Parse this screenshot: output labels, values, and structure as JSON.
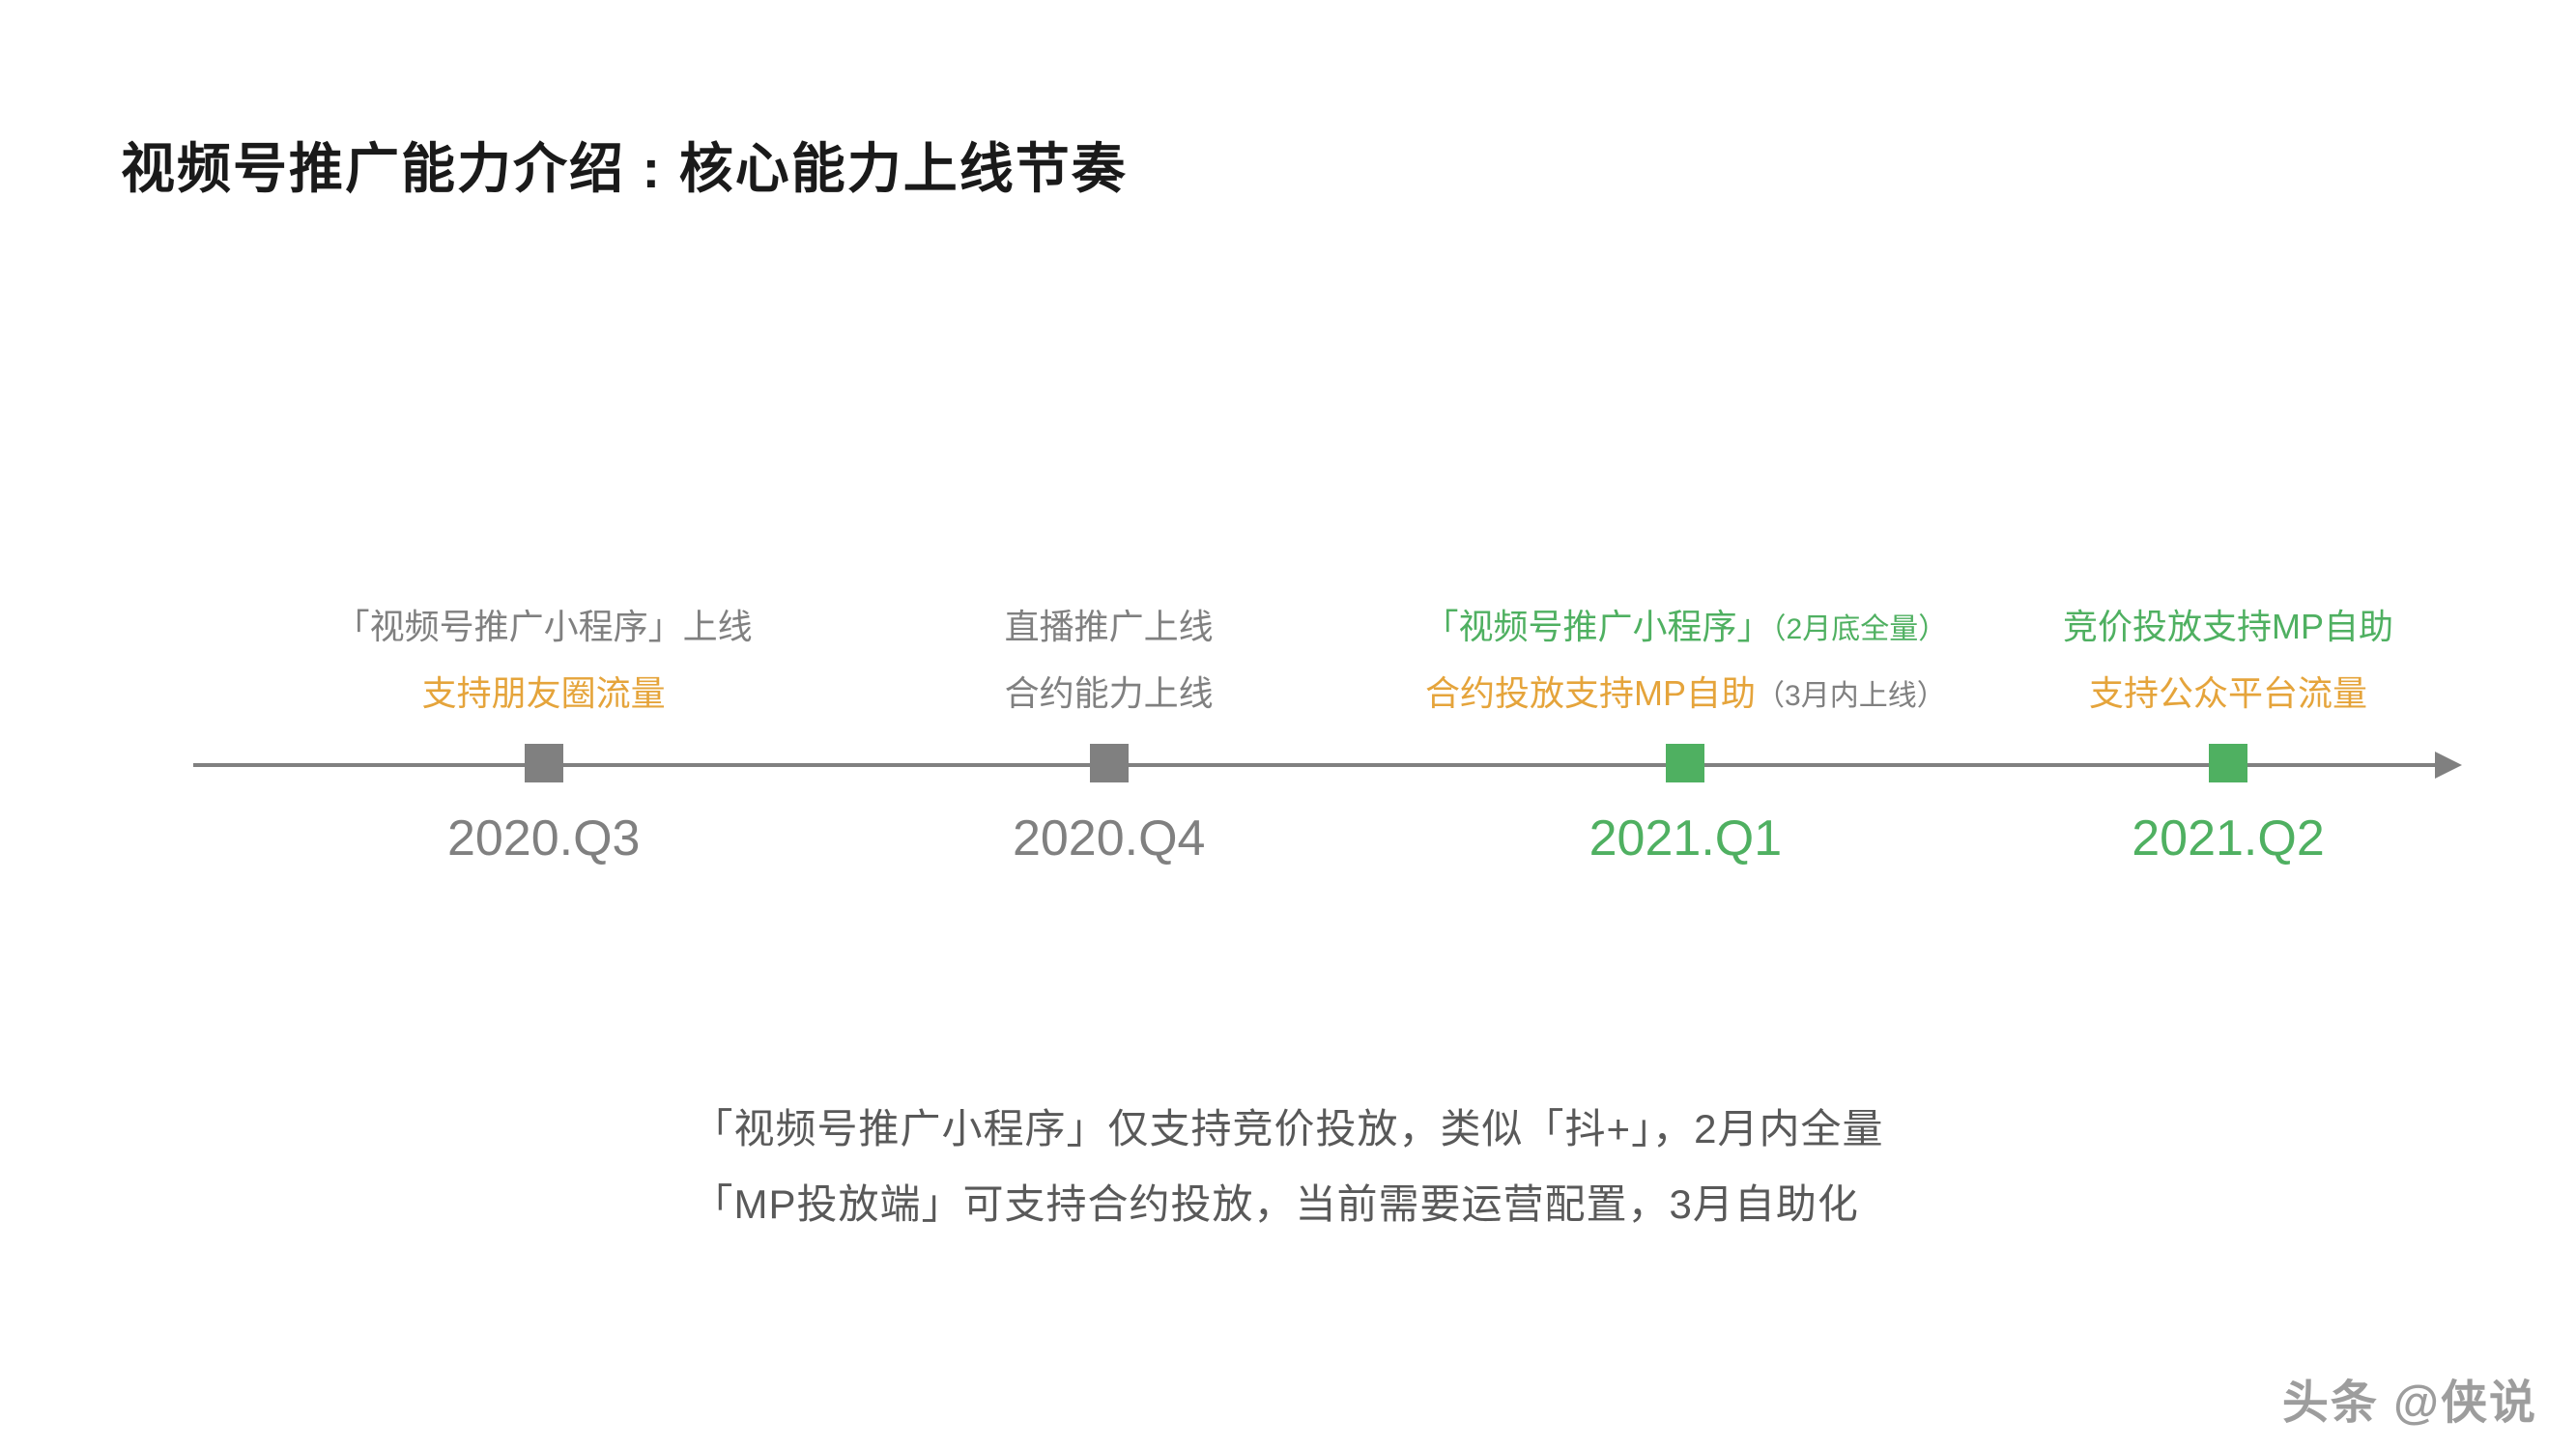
{
  "title": "视频号推广能力介绍 : 核心能力上线节奏",
  "colors": {
    "gray_text": "#808080",
    "gray_marker": "#808080",
    "green": "#4fb061",
    "orange": "#e5a43b",
    "dark_gray": "#595959",
    "timeline": "#808080"
  },
  "timeline": {
    "milestones": [
      {
        "period": "2020.Q3",
        "position_pct": 15.5,
        "marker_color": "#808080",
        "period_color": "#808080",
        "lines": [
          {
            "text": "「视频号推广小程序」上线",
            "color": "#808080"
          },
          {
            "text": "支持朋友圈流量",
            "color": "#e5a43b"
          }
        ]
      },
      {
        "period": "2020.Q4",
        "position_pct": 40.5,
        "marker_color": "#808080",
        "period_color": "#808080",
        "lines": [
          {
            "text": "直播推广上线",
            "color": "#808080"
          },
          {
            "text": "合约能力上线",
            "color": "#808080"
          }
        ]
      },
      {
        "period": "2021.Q1",
        "position_pct": 66,
        "marker_color": "#4fb061",
        "period_color": "#4fb061",
        "lines": [
          {
            "text": "「视频号推广小程序」",
            "color": "#4fb061",
            "suffix": "（2月底全量）",
            "suffix_color": "#4fb061"
          },
          {
            "text": "合约投放支持MP自助",
            "color": "#e5a43b",
            "suffix": "（3月内上线）",
            "suffix_color": "#808080"
          }
        ]
      },
      {
        "period": "2021.Q2",
        "position_pct": 90,
        "marker_color": "#4fb061",
        "period_color": "#4fb061",
        "lines": [
          {
            "text": "竞价投放支持MP自助",
            "color": "#4fb061"
          },
          {
            "text": "支持公众平台流量",
            "color": "#e5a43b"
          }
        ]
      }
    ]
  },
  "footer": {
    "line1": "「视频号推广小程序」仅支持竞价投放，类似「抖+」，2月内全量",
    "line2": "「MP投放端」可支持合约投放，当前需要运营配置，3月自助化"
  },
  "watermark": "头条 @侠说"
}
